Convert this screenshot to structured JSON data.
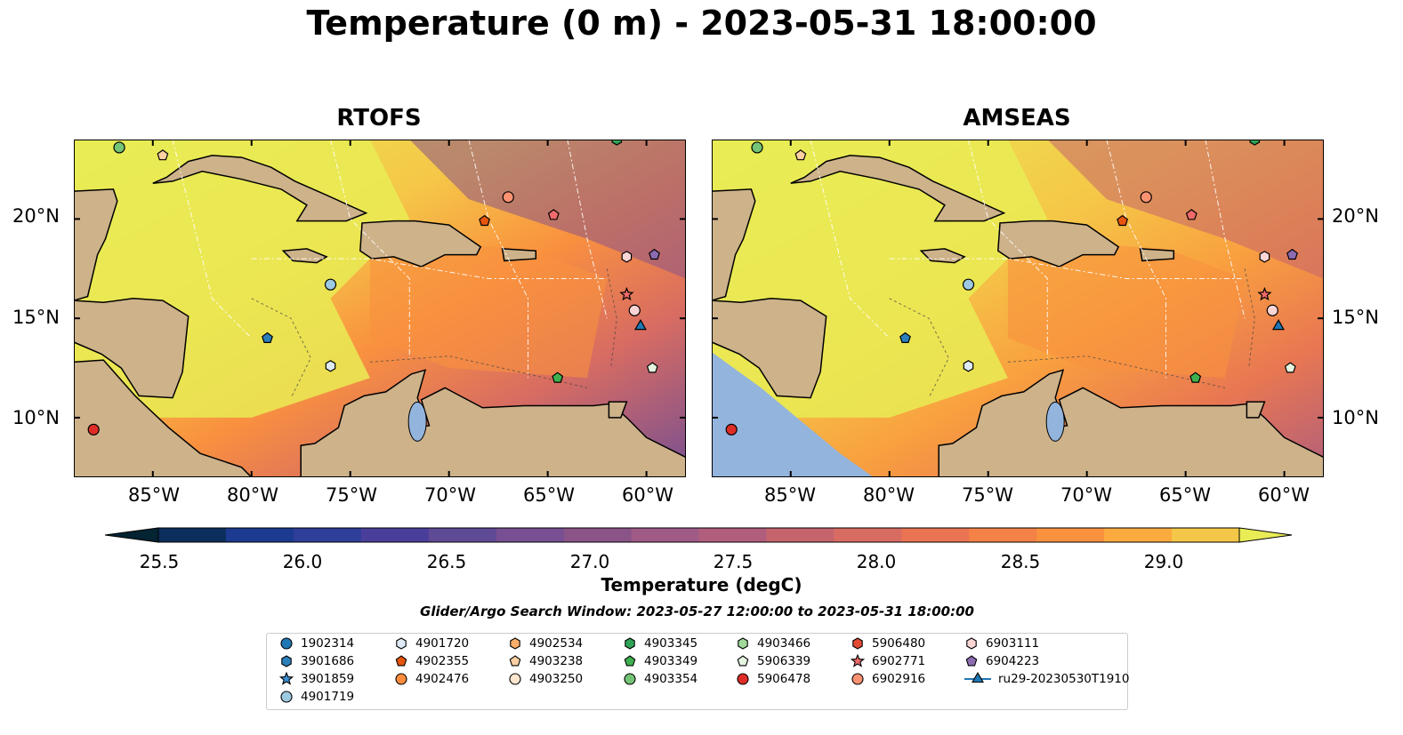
{
  "title": "Temperature (0 m) - 2023-05-31 18:00:00",
  "panels": [
    {
      "name": "RTOFS"
    },
    {
      "name": "AMSEAS"
    }
  ],
  "lon_labels": [
    "85°W",
    "80°W",
    "75°W",
    "70°W",
    "65°W",
    "60°W"
  ],
  "lat_labels": [
    "20°N",
    "15°N",
    "10°N"
  ],
  "map_extent": {
    "lon": [
      -89,
      -58
    ],
    "lat": [
      7,
      24
    ]
  },
  "colorbar": {
    "label": "Temperature (degC)",
    "ticks": [
      "25.5",
      "26.0",
      "26.5",
      "27.0",
      "27.5",
      "28.0",
      "28.5",
      "29.0"
    ],
    "range": [
      25.5,
      29.25
    ],
    "colors": [
      "#042333",
      "#0b2e5c",
      "#1c3a8f",
      "#2e3e99",
      "#4a3e9b",
      "#5f4a96",
      "#774f92",
      "#8b5488",
      "#9f5a86",
      "#b15e7c",
      "#c5646d",
      "#d86c62",
      "#ea7352",
      "#f48145",
      "#f9913f",
      "#fbab3e",
      "#f5c748",
      "#e9ec55"
    ]
  },
  "search_window": "Glider/Argo Search Window: 2023-05-27 12:00:00 to 2023-05-31 18:00:00",
  "legend": [
    {
      "label": "1902314",
      "marker": "circle",
      "color": "#1f77b4"
    },
    {
      "label": "3901686",
      "marker": "hexagon",
      "color": "#2c7fb8"
    },
    {
      "label": "3901859",
      "marker": "star",
      "color": "#3b8fd0"
    },
    {
      "label": "4901719",
      "marker": "circle",
      "color": "#9ecae1"
    },
    {
      "label": "4901720",
      "marker": "hexagon",
      "color": "#deebf7"
    },
    {
      "label": "4902355",
      "marker": "pentagon",
      "color": "#e6550d"
    },
    {
      "label": "4902476",
      "marker": "circle",
      "color": "#fd8d3c"
    },
    {
      "label": "4902534",
      "marker": "hexagon",
      "color": "#fdae6b"
    },
    {
      "label": "4903238",
      "marker": "pentagon",
      "color": "#fdd0a2"
    },
    {
      "label": "4903250",
      "marker": "circle",
      "color": "#fee6ce"
    },
    {
      "label": "4903345",
      "marker": "hexagon",
      "color": "#31a354"
    },
    {
      "label": "4903349",
      "marker": "pentagon",
      "color": "#3fb04f"
    },
    {
      "label": "4903354",
      "marker": "circle",
      "color": "#74c476"
    },
    {
      "label": "4903466",
      "marker": "hexagon",
      "color": "#a1d99b"
    },
    {
      "label": "5906339",
      "marker": "pentagon",
      "color": "#e5f5e0"
    },
    {
      "label": "5906478",
      "marker": "circle",
      "color": "#de2d26"
    },
    {
      "label": "5906480",
      "marker": "hexagon",
      "color": "#e34a33"
    },
    {
      "label": "6902771",
      "marker": "star",
      "color": "#f06a6a"
    },
    {
      "label": "6902916",
      "marker": "circle",
      "color": "#fc9272"
    },
    {
      "label": "6903111",
      "marker": "hexagon",
      "color": "#fcd5d5"
    },
    {
      "label": "6904223",
      "marker": "pentagon",
      "color": "#8c6bb1"
    },
    {
      "label": "ru29-20230530T1910",
      "marker": "triangle-line",
      "color": "#1f77b4"
    }
  ],
  "map_points": [
    {
      "marker": "circle",
      "color": "#74c476",
      "lon": -86.7,
      "lat": 23.6
    },
    {
      "marker": "pentagon",
      "color": "#fdd0a2",
      "lon": -84.5,
      "lat": 23.2
    },
    {
      "marker": "circle",
      "color": "#fc9272",
      "lon": -67.0,
      "lat": 21.1
    },
    {
      "marker": "pentagon",
      "color": "#e6550d",
      "lon": -68.2,
      "lat": 19.9
    },
    {
      "marker": "pentagon",
      "color": "#f06a6a",
      "lon": -64.7,
      "lat": 20.2
    },
    {
      "marker": "hexagon",
      "color": "#fcd5d5",
      "lon": -61.0,
      "lat": 18.1
    },
    {
      "marker": "pentagon",
      "color": "#8c6bb1",
      "lon": -59.6,
      "lat": 18.2
    },
    {
      "marker": "star",
      "color": "#f06a6a",
      "lon": -61.0,
      "lat": 16.2
    },
    {
      "marker": "circle",
      "color": "#fcd5d5",
      "lon": -60.6,
      "lat": 15.4
    },
    {
      "marker": "circle",
      "color": "#9ecae1",
      "lon": -76.0,
      "lat": 16.7
    },
    {
      "marker": "pentagon",
      "color": "#2c7fb8",
      "lon": -79.2,
      "lat": 14.0
    },
    {
      "marker": "hexagon",
      "color": "#deebf7",
      "lon": -76.0,
      "lat": 12.6
    },
    {
      "marker": "pentagon",
      "color": "#3fb04f",
      "lon": -64.5,
      "lat": 12.0
    },
    {
      "marker": "pentagon",
      "color": "#e5f5e0",
      "lon": -59.7,
      "lat": 12.5
    },
    {
      "marker": "circle",
      "color": "#de2d26",
      "lon": -88.0,
      "lat": 9.4
    },
    {
      "marker": "hexagon",
      "color": "#31a354",
      "lon": -61.5,
      "lat": 24.0
    },
    {
      "marker": "triangle",
      "color": "#1f77b4",
      "lon": -60.3,
      "lat": 14.6
    }
  ]
}
